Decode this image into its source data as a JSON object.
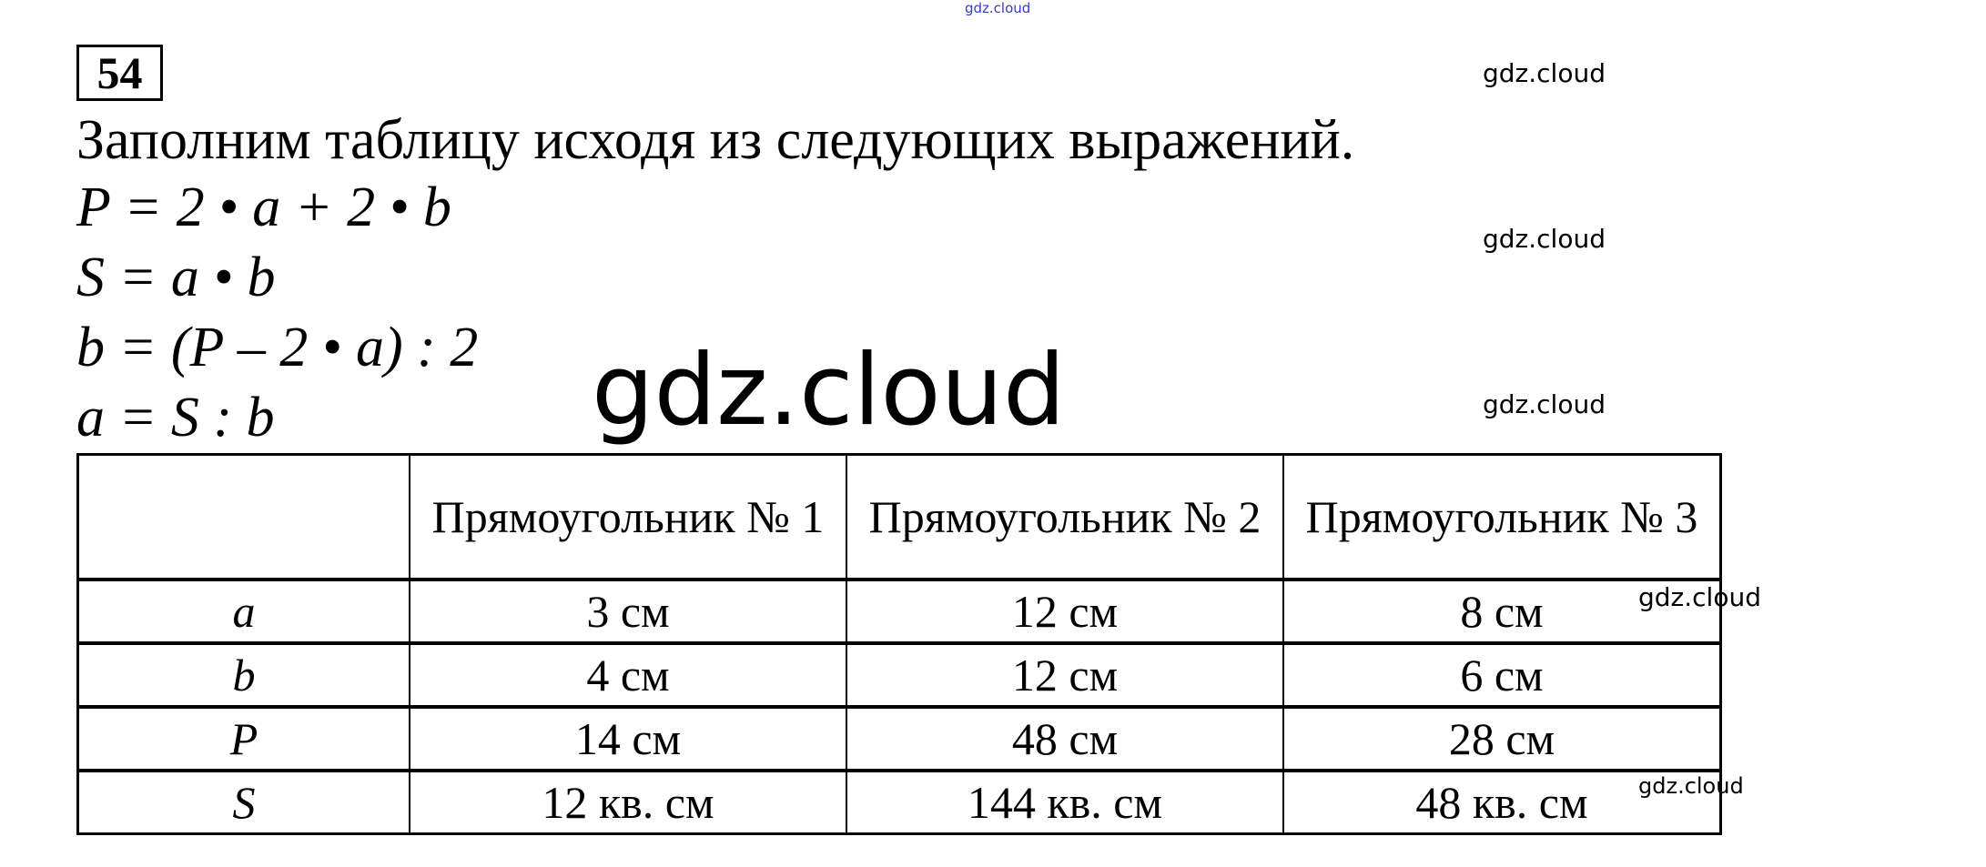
{
  "watermark": "gdz.cloud",
  "task_number": "54",
  "heading": "Заполним таблицу исходя из следующих выражений.",
  "formulas": [
    "P = 2 • a + 2 • b",
    "S = a • b",
    "b = (P – 2 • a) : 2",
    "a = S : b"
  ],
  "table": {
    "headers": [
      "",
      "Прямоугольник № 1",
      "Прямоугольник № 2",
      "Прямоугольник № 3"
    ],
    "rows": [
      {
        "label": "a",
        "values": [
          "3 см",
          "12 см",
          "8 см"
        ]
      },
      {
        "label": "b",
        "values": [
          "4 см",
          "12 см",
          "6 см"
        ]
      },
      {
        "label": "P",
        "values": [
          "14 см",
          "48 см",
          "28 см"
        ]
      },
      {
        "label": "S",
        "values": [
          "12 кв. см",
          "144 кв. см",
          "48 кв. см"
        ]
      }
    ]
  }
}
